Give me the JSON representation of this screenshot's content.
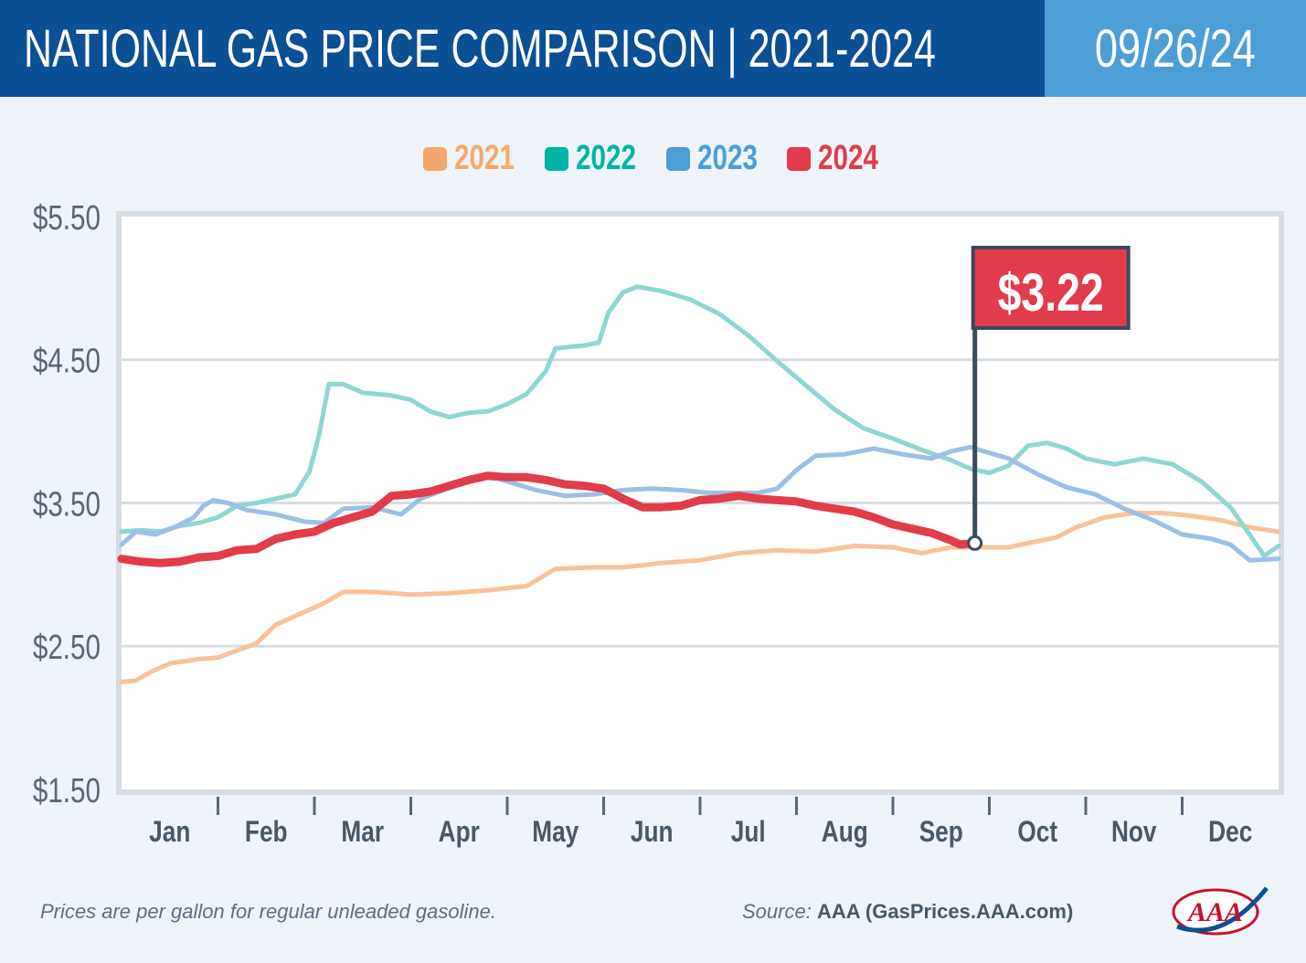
{
  "header": {
    "title_bold": "NATIONAL GAS PRICE COMPARISON",
    "title_sep": " | ",
    "title_years": "2021-2024",
    "date": "09/26/24"
  },
  "colors": {
    "header_bg": "#0b4f94",
    "date_bg": "#4d9ed7",
    "series_2021": "#f6a86a",
    "series_2022": "#00b3a6",
    "series_2023": "#4d9ed7",
    "series_2024": "#e03c4a",
    "callout_bg": "#e03c4a",
    "callout_border": "#3a4a5c"
  },
  "footer": {
    "note": "Prices are per gallon for regular unleaded gasoline.",
    "source_label": "Source:",
    "source_value": "AAA (GasPrices.AAA.com)",
    "logo_text": "AAA"
  },
  "chart_data": {
    "type": "line",
    "title": "NATIONAL GAS PRICE COMPARISON | 2021-2024",
    "xlabel": "",
    "ylabel": "",
    "x_domain": [
      0,
      12
    ],
    "ylim": [
      1.5,
      5.5
    ],
    "yticks": [
      1.5,
      2.5,
      3.5,
      4.5,
      5.5
    ],
    "ytick_labels": [
      "$1.50",
      "$2.50",
      "$3.50",
      "$4.50",
      "$5.50"
    ],
    "categories": [
      "Jan",
      "Feb",
      "Mar",
      "Apr",
      "May",
      "Jun",
      "Jul",
      "Aug",
      "Sep",
      "Oct",
      "Nov",
      "Dec"
    ],
    "grid": true,
    "legend_position": "top-center",
    "annotation": {
      "label": "$3.22",
      "x": 8.85,
      "y": 3.22,
      "series": "2024"
    },
    "series": [
      {
        "name": "2021",
        "color": "#f6a86a",
        "x": [
          0,
          0.15,
          0.3,
          0.5,
          0.8,
          1.0,
          1.2,
          1.4,
          1.6,
          1.9,
          2.1,
          2.3,
          2.6,
          3.0,
          3.4,
          3.8,
          4.2,
          4.5,
          4.9,
          5.2,
          5.6,
          6.0,
          6.4,
          6.8,
          7.2,
          7.6,
          8.0,
          8.3,
          8.6,
          8.9,
          9.2,
          9.4,
          9.7,
          9.9,
          10.2,
          10.5,
          10.8,
          11.1,
          11.4,
          11.7,
          12.0
        ],
        "values": [
          2.25,
          2.26,
          2.32,
          2.38,
          2.41,
          2.42,
          2.47,
          2.52,
          2.65,
          2.74,
          2.8,
          2.88,
          2.88,
          2.86,
          2.87,
          2.89,
          2.92,
          3.04,
          3.05,
          3.05,
          3.08,
          3.1,
          3.15,
          3.17,
          3.16,
          3.2,
          3.19,
          3.15,
          3.19,
          3.19,
          3.19,
          3.22,
          3.26,
          3.33,
          3.4,
          3.43,
          3.43,
          3.41,
          3.38,
          3.33,
          3.3
        ]
      },
      {
        "name": "2022",
        "color": "#00b3a6",
        "x": [
          0,
          0.2,
          0.4,
          0.6,
          0.8,
          1.0,
          1.2,
          1.4,
          1.6,
          1.8,
          1.95,
          2.05,
          2.15,
          2.3,
          2.5,
          2.8,
          3.0,
          3.2,
          3.4,
          3.6,
          3.8,
          4.0,
          4.2,
          4.4,
          4.5,
          4.8,
          4.95,
          5.05,
          5.2,
          5.35,
          5.6,
          5.9,
          6.2,
          6.5,
          6.8,
          7.1,
          7.4,
          7.7,
          8.0,
          8.3,
          8.6,
          8.8,
          9.0,
          9.2,
          9.4,
          9.6,
          9.8,
          10.0,
          10.3,
          10.6,
          10.9,
          11.2,
          11.5,
          11.7,
          11.85,
          12.0
        ],
        "values": [
          3.3,
          3.31,
          3.3,
          3.34,
          3.36,
          3.4,
          3.48,
          3.5,
          3.53,
          3.56,
          3.72,
          3.98,
          4.33,
          4.33,
          4.27,
          4.25,
          4.22,
          4.14,
          4.1,
          4.13,
          4.14,
          4.19,
          4.26,
          4.42,
          4.58,
          4.6,
          4.62,
          4.83,
          4.97,
          5.01,
          4.98,
          4.92,
          4.82,
          4.67,
          4.49,
          4.32,
          4.15,
          4.02,
          3.95,
          3.87,
          3.8,
          3.74,
          3.71,
          3.76,
          3.9,
          3.92,
          3.88,
          3.81,
          3.77,
          3.81,
          3.77,
          3.65,
          3.47,
          3.28,
          3.13,
          3.2
        ]
      },
      {
        "name": "2023",
        "color": "#4d9ed7",
        "x": [
          0,
          0.15,
          0.35,
          0.55,
          0.75,
          0.85,
          0.95,
          1.1,
          1.3,
          1.6,
          1.9,
          2.1,
          2.3,
          2.6,
          2.9,
          3.1,
          3.3,
          3.5,
          3.7,
          3.9,
          4.1,
          4.3,
          4.6,
          4.9,
          5.2,
          5.5,
          5.8,
          6.1,
          6.4,
          6.6,
          6.8,
          7.0,
          7.2,
          7.5,
          7.8,
          8.1,
          8.4,
          8.6,
          8.8,
          9.0,
          9.2,
          9.5,
          9.8,
          10.1,
          10.4,
          10.7,
          11.0,
          11.3,
          11.5,
          11.7,
          12.0
        ],
        "values": [
          3.21,
          3.3,
          3.28,
          3.33,
          3.4,
          3.48,
          3.52,
          3.5,
          3.45,
          3.42,
          3.37,
          3.36,
          3.46,
          3.47,
          3.42,
          3.53,
          3.58,
          3.63,
          3.68,
          3.67,
          3.63,
          3.59,
          3.55,
          3.56,
          3.59,
          3.6,
          3.59,
          3.57,
          3.57,
          3.57,
          3.6,
          3.73,
          3.83,
          3.84,
          3.88,
          3.84,
          3.81,
          3.86,
          3.89,
          3.85,
          3.81,
          3.7,
          3.61,
          3.56,
          3.46,
          3.38,
          3.28,
          3.25,
          3.21,
          3.1,
          3.11
        ]
      },
      {
        "name": "2024",
        "color": "#e03c4a",
        "x": [
          0,
          0.2,
          0.4,
          0.6,
          0.8,
          1.0,
          1.2,
          1.4,
          1.6,
          1.8,
          2.0,
          2.2,
          2.4,
          2.6,
          2.8,
          3.0,
          3.2,
          3.4,
          3.6,
          3.8,
          4.0,
          4.2,
          4.4,
          4.6,
          4.8,
          5.0,
          5.2,
          5.4,
          5.6,
          5.8,
          6.0,
          6.2,
          6.4,
          6.6,
          6.8,
          7.0,
          7.2,
          7.4,
          7.6,
          7.8,
          8.0,
          8.2,
          8.4,
          8.6,
          8.7,
          8.85
        ],
        "values": [
          3.11,
          3.09,
          3.08,
          3.09,
          3.12,
          3.13,
          3.17,
          3.18,
          3.25,
          3.28,
          3.3,
          3.36,
          3.4,
          3.44,
          3.55,
          3.56,
          3.58,
          3.62,
          3.66,
          3.69,
          3.68,
          3.68,
          3.66,
          3.63,
          3.62,
          3.6,
          3.53,
          3.47,
          3.47,
          3.48,
          3.52,
          3.53,
          3.55,
          3.53,
          3.52,
          3.51,
          3.48,
          3.46,
          3.44,
          3.4,
          3.35,
          3.32,
          3.29,
          3.24,
          3.21,
          3.22
        ]
      }
    ]
  }
}
